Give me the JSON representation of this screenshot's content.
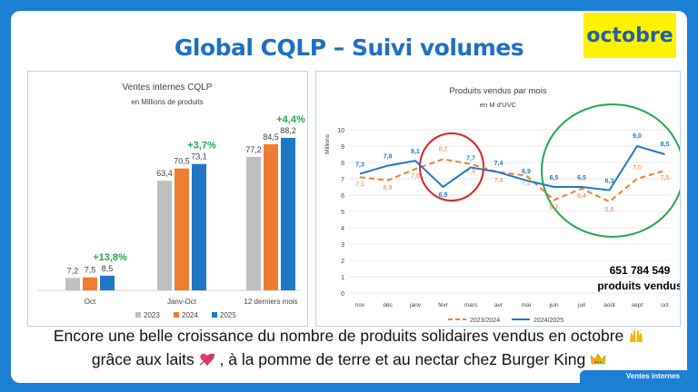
{
  "title": "Global CQLP – Suivi volumes",
  "badge": "octobre",
  "caption": {
    "line1": "Encore une belle croissance du nombre de produits solidaires vendus en octobre",
    "line2a": "grâce aux laits",
    "line2b": ", à la pomme de terre et au nectar chez Burger King",
    "icon1": "raised-hands-icon",
    "icon2": "heart-arrow-icon",
    "icon3": "crown-icon"
  },
  "footer": "Ventes internes",
  "colors": {
    "blue": "#1F77C4",
    "orange": "#ED7D31",
    "gray": "#BFBFBF",
    "green": "#1FA84F",
    "red": "#E02020",
    "title": "#1F6FBF"
  },
  "chart_data": [
    {
      "type": "bar",
      "title": "Ventes internes CQLP",
      "subtitle": "en Millions de produits",
      "categories": [
        "Oct",
        "Janv-Oct",
        "12 derniers mois"
      ],
      "series": [
        {
          "name": "2023",
          "values": [
            7.2,
            63.4,
            77.2
          ],
          "labels": [
            "7,2",
            "63,4",
            "77,2"
          ],
          "color": "#BFBFBF"
        },
        {
          "name": "2024",
          "values": [
            7.5,
            70.5,
            84.5
          ],
          "labels": [
            "7,5",
            "70,5",
            "84,5"
          ],
          "color": "#ED7D31"
        },
        {
          "name": "2025",
          "values": [
            8.5,
            73.1,
            88.2
          ],
          "labels": [
            "8,5",
            "73,1",
            "88,2"
          ],
          "color": "#1F77C4"
        }
      ],
      "growth_labels": [
        "+13,8%",
        "+3,7%",
        "+4,4%"
      ],
      "legend": "bottom",
      "grid": false
    },
    {
      "type": "line",
      "title": "Produits vendus par mois",
      "subtitle": "en M d'UVC",
      "ylabel": "Millions",
      "categories": [
        "nov",
        "déc",
        "janv",
        "févr",
        "mars",
        "avr",
        "mai",
        "juin",
        "juil",
        "août",
        "sept",
        "oct"
      ],
      "yticks": [
        0,
        1,
        2,
        3,
        4,
        5,
        6,
        7,
        8,
        9,
        10
      ],
      "ylim": [
        0,
        10
      ],
      "series": [
        {
          "name": "2023/2024",
          "style": "dashed",
          "color": "#ED7D31",
          "values": [
            7.1,
            6.9,
            7.6,
            8.2,
            7.9,
            7.4,
            7.2,
            5.7,
            6.4,
            5.6,
            7.0,
            7.5
          ],
          "labels": [
            "7,1",
            "6,9",
            "7,6",
            "8,2",
            "7,9",
            "7,4",
            "7,2",
            "5,7",
            "6,4",
            "5,6",
            "7,0",
            "7,5"
          ]
        },
        {
          "name": "2024/2025",
          "style": "solid",
          "color": "#1F77C4",
          "values": [
            7.3,
            7.8,
            8.1,
            6.5,
            7.7,
            7.4,
            6.9,
            6.5,
            6.5,
            6.3,
            9.0,
            8.5
          ],
          "labels": [
            "7,3",
            "7,8",
            "8,1",
            "6,5",
            "7,7",
            "7,4",
            "6,9",
            "6,5",
            "6,5",
            "6,3",
            "9,0",
            "8,5"
          ]
        }
      ],
      "annotation": {
        "line1": "651 784 549",
        "line2": "produits vendus"
      },
      "legend": "bottom",
      "grid": true
    }
  ]
}
